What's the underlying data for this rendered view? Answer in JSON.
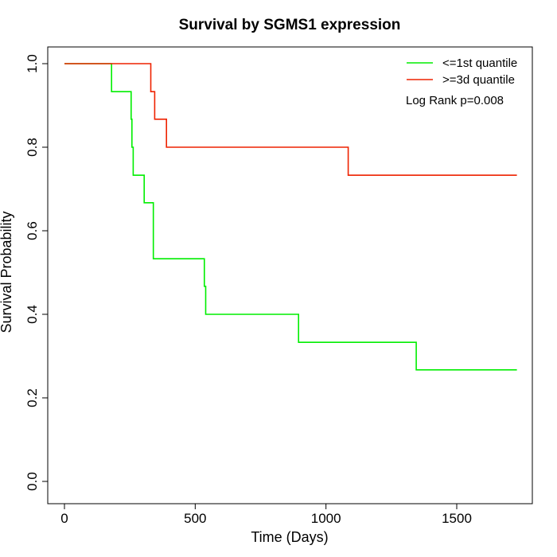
{
  "chart_data": {
    "type": "line",
    "subtype": "kaplan-meier step plot",
    "title": "Survival by SGMS1 expression",
    "xlabel": "Time (Days)",
    "ylabel": "Survival Probability",
    "xlim": [
      0,
      1730
    ],
    "ylim": [
      0,
      1
    ],
    "x_ticks": [
      0,
      500,
      1000,
      1500
    ],
    "x_tick_labels": [
      "0",
      "500",
      "1000",
      "1500"
    ],
    "y_ticks": [
      0,
      0.2,
      0.4,
      0.6,
      0.8,
      1.0
    ],
    "y_tick_labels": [
      "0.0",
      "0.2",
      "0.4",
      "0.6",
      "0.8",
      "1.0"
    ],
    "grid": false,
    "legend_position": "top-right",
    "annotation": "Log Rank p=0.008",
    "series": [
      {
        "name": "<=1st quantile",
        "color": "#00ee00",
        "points": [
          [
            0,
            1.0
          ],
          [
            180,
            1.0
          ],
          [
            180,
            0.933
          ],
          [
            255,
            0.933
          ],
          [
            255,
            0.867
          ],
          [
            258,
            0.867
          ],
          [
            258,
            0.8
          ],
          [
            263,
            0.8
          ],
          [
            263,
            0.733
          ],
          [
            305,
            0.733
          ],
          [
            305,
            0.667
          ],
          [
            340,
            0.667
          ],
          [
            340,
            0.533
          ],
          [
            535,
            0.533
          ],
          [
            535,
            0.467
          ],
          [
            540,
            0.467
          ],
          [
            540,
            0.4
          ],
          [
            895,
            0.4
          ],
          [
            895,
            0.333
          ],
          [
            1345,
            0.333
          ],
          [
            1345,
            0.267
          ],
          [
            1730,
            0.267
          ]
        ]
      },
      {
        "name": ">=3d quantile",
        "color": "#ee2200",
        "points": [
          [
            0,
            1.0
          ],
          [
            330,
            1.0
          ],
          [
            330,
            0.933
          ],
          [
            345,
            0.933
          ],
          [
            345,
            0.867
          ],
          [
            390,
            0.867
          ],
          [
            390,
            0.8
          ],
          [
            1085,
            0.8
          ],
          [
            1085,
            0.733
          ],
          [
            1730,
            0.733
          ]
        ]
      }
    ]
  }
}
